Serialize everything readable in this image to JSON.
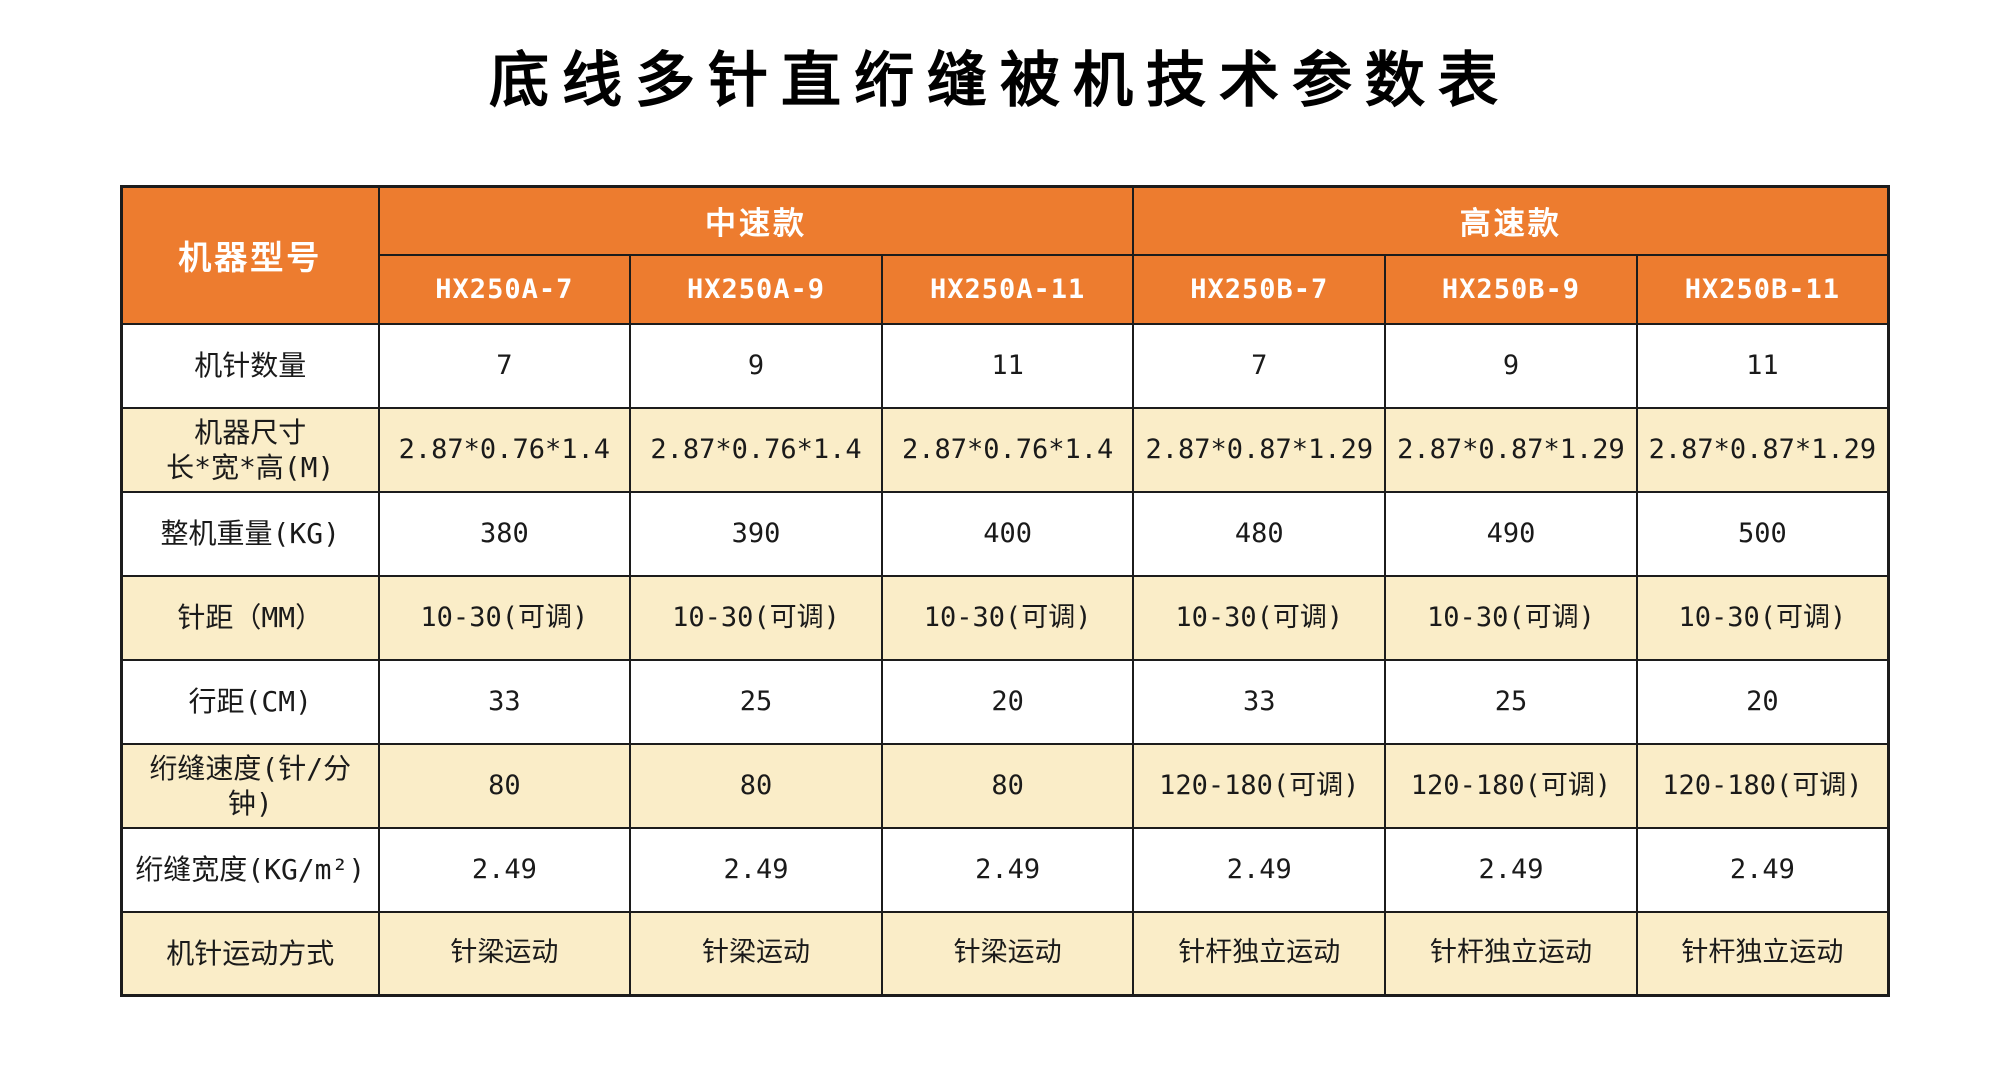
{
  "title": "底线多针直绗缝被机技术参数表",
  "colors": {
    "header_bg": "#ED7C2F",
    "header_text": "#FFFFFF",
    "stripe_bg": "#FAEDC8",
    "row_bg": "#FFFFFF",
    "border": "#1C1C1C",
    "body_text": "#1A1A1A"
  },
  "table": {
    "corner_header": "机器型号",
    "groups": [
      {
        "label": "中速款"
      },
      {
        "label": "高速款"
      }
    ],
    "models": [
      "HX250A-7",
      "HX250A-9",
      "HX250A-11",
      "HX250B-7",
      "HX250B-9",
      "HX250B-11"
    ],
    "rows": [
      {
        "label": "机针数量",
        "values": [
          "7",
          "9",
          "11",
          "7",
          "9",
          "11"
        ]
      },
      {
        "label": "机器尺寸\n长*宽*高(M)",
        "values": [
          "2.87*0.76*1.4",
          "2.87*0.76*1.4",
          "2.87*0.76*1.4",
          "2.87*0.87*1.29",
          "2.87*0.87*1.29",
          "2.87*0.87*1.29"
        ]
      },
      {
        "label": "整机重量(KG)",
        "values": [
          "380",
          "390",
          "400",
          "480",
          "490",
          "500"
        ]
      },
      {
        "label": "针距（MM）",
        "values": [
          "10-30(可调)",
          "10-30(可调)",
          "10-30(可调)",
          "10-30(可调)",
          "10-30(可调)",
          "10-30(可调)"
        ]
      },
      {
        "label": "行距(CM)",
        "values": [
          "33",
          "25",
          "20",
          "33",
          "25",
          "20"
        ]
      },
      {
        "label": "绗缝速度(针/分\n钟)",
        "values": [
          "80",
          "80",
          "80",
          "120-180(可调)",
          "120-180(可调)",
          "120-180(可调)"
        ]
      },
      {
        "label": "绗缝宽度(KG/m²)",
        "values": [
          "2.49",
          "2.49",
          "2.49",
          "2.49",
          "2.49",
          "2.49"
        ]
      },
      {
        "label": "机针运动方式",
        "values": [
          "针梁运动",
          "针梁运动",
          "针梁运动",
          "针杆独立运动",
          "针杆独立运动",
          "针杆独立运动"
        ]
      }
    ]
  }
}
